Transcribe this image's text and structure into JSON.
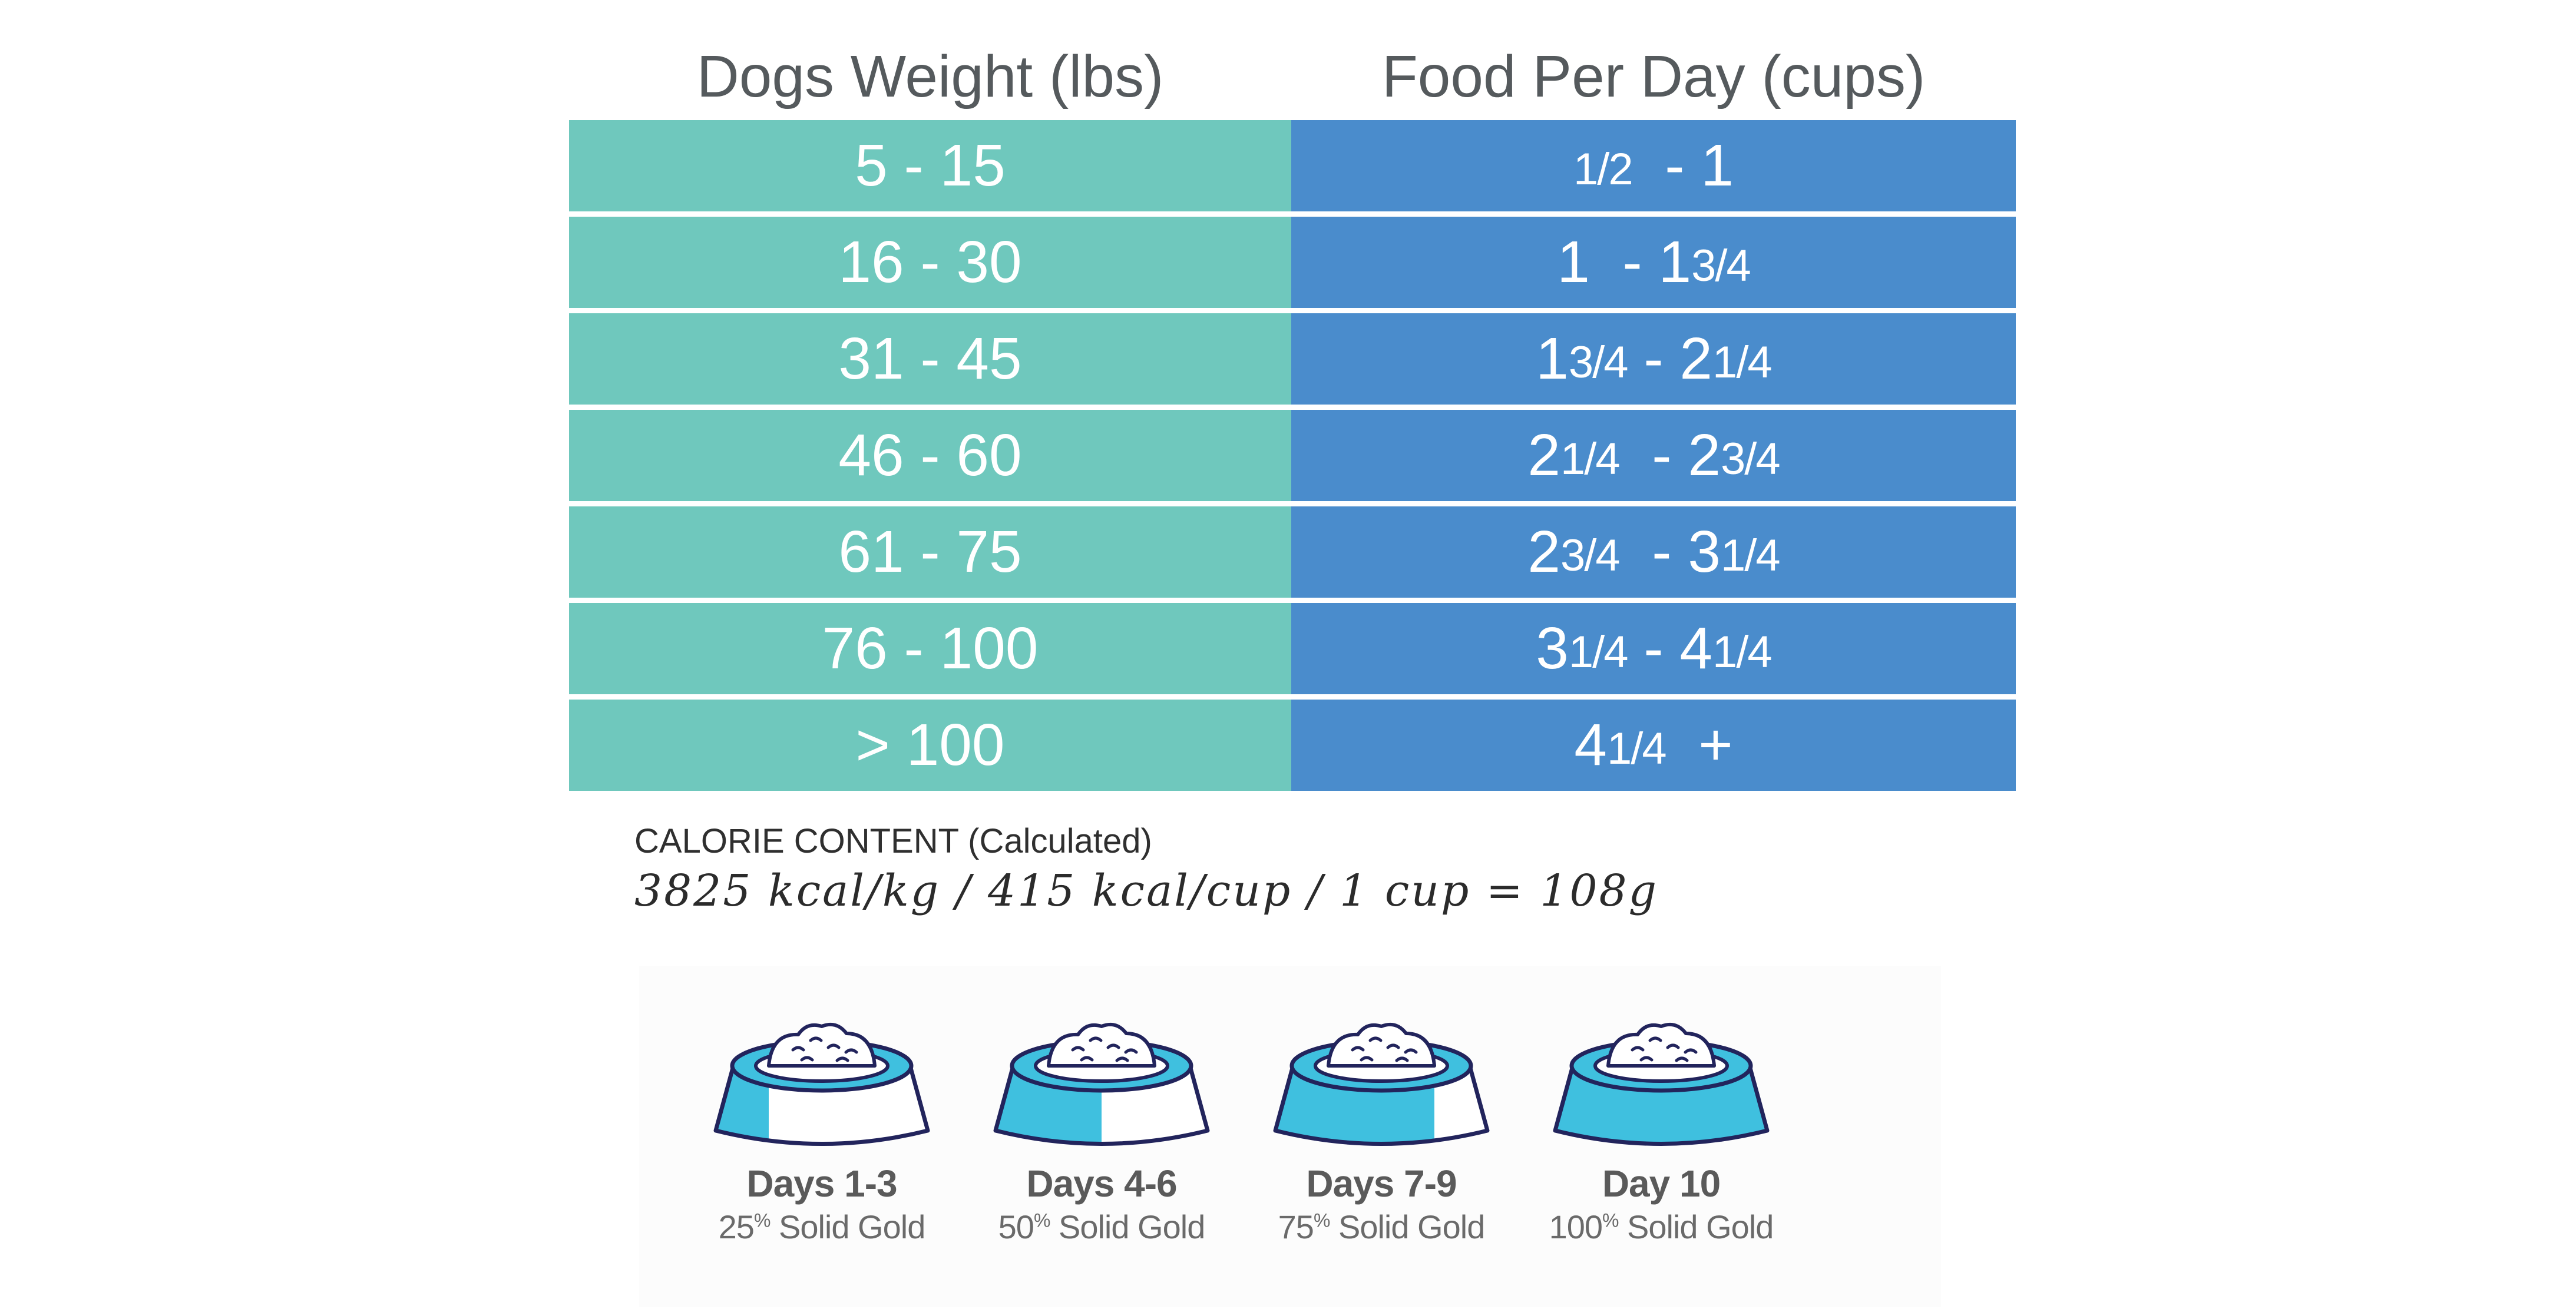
{
  "table": {
    "header_weight": "Dogs Weight (lbs)",
    "header_food": "Food Per Day (cups)",
    "rows": [
      {
        "weight": "5 - 15",
        "food": [
          "1/2",
          "  - 1",
          "",
          ""
        ]
      },
      {
        "weight": "16 - 30",
        "food": [
          "",
          "1  - 1",
          "3/4",
          ""
        ]
      },
      {
        "weight": "31 - 45",
        "food": [
          "1",
          "3/4",
          " - 2",
          "1/4"
        ]
      },
      {
        "weight": "46 - 60",
        "food": [
          "2",
          "1/4",
          "  - 2",
          "3/4"
        ]
      },
      {
        "weight": "61 - 75",
        "food": [
          "2",
          "3/4",
          "  - 3",
          "1/4"
        ]
      },
      {
        "weight": "76 - 100",
        "food": [
          "3",
          "1/4",
          " - 4",
          "1/4"
        ]
      },
      {
        "weight": "> 100",
        "food": [
          "4",
          "1/4",
          "  +",
          ""
        ]
      }
    ]
  },
  "calorie": {
    "title": "CALORIE CONTENT (Calculated)",
    "values": "3825 kcal/kg / 415 kcal/cup / 1 cup = 108g"
  },
  "transition": [
    {
      "day": "Days 1-3",
      "percent": "25",
      "percent_sign": "%",
      "label": " Solid Gold",
      "fraction": 0.25
    },
    {
      "day": "Days 4-6",
      "percent": "50",
      "percent_sign": "%",
      "label": " Solid Gold",
      "fraction": 0.5
    },
    {
      "day": "Days 7-9",
      "percent": "75",
      "percent_sign": "%",
      "label": " Solid Gold",
      "fraction": 0.75
    },
    {
      "day": "Day 10",
      "percent": "100",
      "percent_sign": "%",
      "label": " Solid Gold",
      "fraction": 1.0
    }
  ],
  "colors": {
    "weight_column": "#6fc8bd",
    "food_column": "#4a8ccc",
    "bowl_fill": "#3fc0df",
    "bowl_outline": "#22245c"
  }
}
